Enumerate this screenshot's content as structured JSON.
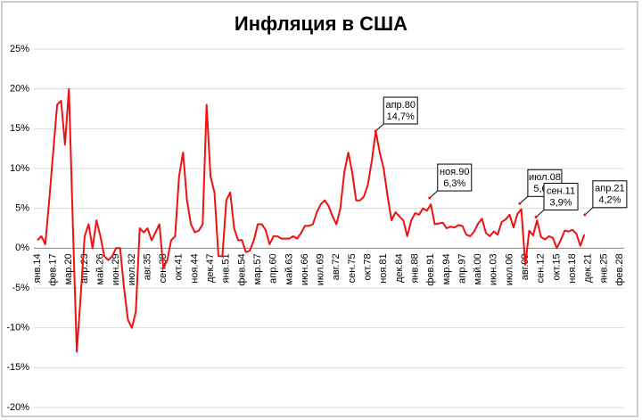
{
  "chart_data": {
    "type": "line",
    "title": "Инфляция в США",
    "color": "#ee1111",
    "grid": true,
    "ylim": [
      -20,
      25
    ],
    "yticks": [
      {
        "value": -20,
        "label": "-20%"
      },
      {
        "value": -15,
        "label": "-15%"
      },
      {
        "value": -10,
        "label": "-10%"
      },
      {
        "value": -5,
        "label": "-5%"
      },
      {
        "value": 0,
        "label": "0%"
      },
      {
        "value": 5,
        "label": "5%"
      },
      {
        "value": 10,
        "label": "10%"
      },
      {
        "value": 15,
        "label": "15%"
      },
      {
        "value": 20,
        "label": "20%"
      },
      {
        "value": 25,
        "label": "25%"
      }
    ],
    "categories": [
      "янв.14",
      null,
      null,
      null,
      "фев.17",
      null,
      null,
      null,
      "мар.20",
      null,
      null,
      null,
      "апр.23",
      null,
      null,
      null,
      "май.26",
      null,
      null,
      null,
      "июн.29",
      null,
      null,
      null,
      "июл.32",
      null,
      null,
      null,
      "авг.35",
      null,
      null,
      null,
      "сен.38",
      null,
      null,
      null,
      "окт.41",
      null,
      null,
      null,
      "ноя.44",
      null,
      null,
      null,
      "дек.47",
      null,
      null,
      null,
      "янв.51",
      null,
      null,
      null,
      "фев.54",
      null,
      null,
      null,
      "мар.57",
      null,
      null,
      null,
      "апр.60",
      null,
      null,
      null,
      "май.63",
      null,
      null,
      null,
      "июн.66",
      null,
      null,
      null,
      "июл.69",
      null,
      null,
      null,
      "авг.72",
      null,
      null,
      null,
      "сен.75",
      null,
      null,
      null,
      "окт.78",
      null,
      null,
      null,
      "ноя.81",
      null,
      null,
      null,
      "дек.84",
      null,
      null,
      null,
      "янв.88",
      null,
      null,
      null,
      "фев.91",
      null,
      null,
      null,
      "мар.94",
      null,
      null,
      null,
      "апр.97",
      null,
      null,
      null,
      "май.00",
      null,
      null,
      null,
      "июн.03",
      null,
      null,
      null,
      "июл.06",
      null,
      null,
      null,
      "авг.09",
      null,
      null,
      null,
      "сен.12",
      null,
      null,
      null,
      "окт.15",
      null,
      null,
      null,
      "ноя.18",
      null,
      null,
      null,
      "дек.21",
      null,
      null,
      null,
      "янв.25",
      null,
      null,
      null,
      "фев.28"
    ],
    "values": [
      1.0,
      1.5,
      0.5,
      6,
      12,
      18,
      18.5,
      13,
      20,
      3,
      -13,
      -6,
      1.5,
      3,
      0,
      3.5,
      1.5,
      -1,
      -1.5,
      -1,
      0,
      0,
      -5,
      -9,
      -10,
      -8,
      2.5,
      2,
      2.5,
      1,
      2,
      3,
      -2.5,
      -1.5,
      1,
      1.5,
      9,
      12,
      6,
      3,
      2,
      2.2,
      3,
      18,
      9,
      7,
      -1,
      -1,
      6,
      7,
      2.5,
      1,
      1,
      -0.5,
      -0.3,
      1,
      3,
      3,
      2.3,
      0.5,
      1.5,
      1.5,
      1.2,
      1.2,
      1.2,
      1.5,
      1.2,
      1.9,
      2.8,
      2.8,
      3.0,
      4.5,
      5.5,
      6.0,
      5.3,
      4.0,
      3.0,
      5.0,
      9.5,
      12.0,
      9.5,
      6.0,
      6.0,
      6.5,
      8.0,
      11.0,
      14.7,
      12.0,
      10.0,
      6.5,
      3.5,
      4.5,
      4.0,
      3.5,
      1.5,
      3.5,
      4.4,
      4.2,
      5.0,
      4.7,
      5.5,
      3.0,
      3.1,
      3.2,
      2.5,
      2.7,
      2.6,
      2.9,
      2.8,
      1.7,
      1.5,
      2.1,
      3.1,
      3.7,
      1.9,
      1.5,
      2.1,
      1.7,
      3.3,
      3.6,
      4.2,
      2.6,
      4.3,
      4.9,
      -2.1,
      2.2,
      1.6,
      3.5,
      1.4,
      1.1,
      1.5,
      1.3,
      0.0,
      1.0,
      2.2,
      2.1,
      2.3,
      1.8,
      0.3,
      1.7,
      null,
      null,
      null,
      null,
      null,
      null,
      null,
      null,
      null
    ],
    "annotations": [
      {
        "label": "апр.80",
        "value_label": "14,7%",
        "value": 14.7
      },
      {
        "label": "ноя.90",
        "value_label": "6,3%",
        "value": 6.3
      },
      {
        "label": "июл.08",
        "value_label": "5,6%",
        "value": 5.6
      },
      {
        "label": "сен.11",
        "value_label": "3,9%",
        "value": 3.9
      },
      {
        "label": "апр.21",
        "value_label": "4,2%",
        "value": 4.2
      }
    ]
  }
}
